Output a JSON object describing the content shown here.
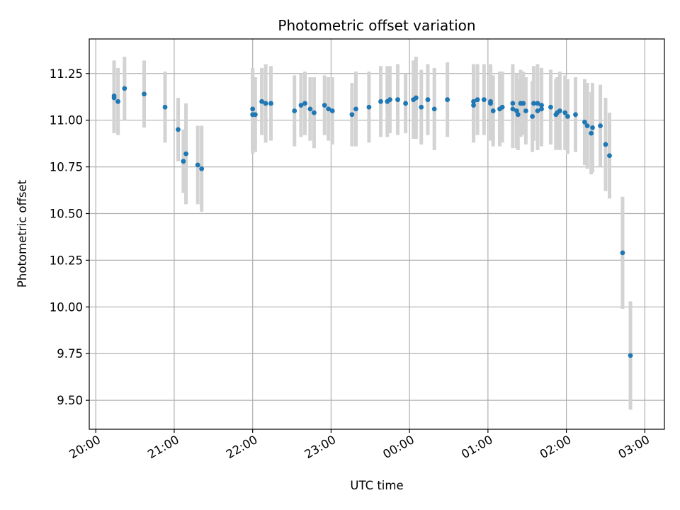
{
  "chart_data": {
    "type": "scatter",
    "title": "Photometric offset variation",
    "xlabel": "UTC time",
    "ylabel": "Photometric offset",
    "x_is_time": true,
    "x_ticks": [
      "20:00",
      "21:00",
      "22:00",
      "23:00",
      "00:00",
      "01:00",
      "02:00",
      "03:00"
    ],
    "y_ticks": [
      "9.50",
      "9.75",
      "10.00",
      "10.25",
      "10.50",
      "10.75",
      "11.00",
      "11.25"
    ],
    "x_range": [
      "19:55",
      "03:15"
    ],
    "ylim": [
      9.345,
      11.435
    ],
    "grid": true,
    "colors": {
      "point": "#1f77b4",
      "errorbar": "#d3d3d3",
      "grid": "#b0b0b0"
    },
    "points": [
      {
        "x": "20:14",
        "y": 11.12,
        "err": 0.19
      },
      {
        "x": "20:14",
        "y": 11.13,
        "err": 0.19
      },
      {
        "x": "20:17",
        "y": 11.1,
        "err": 0.18
      },
      {
        "x": "20:22",
        "y": 11.17,
        "err": 0.17
      },
      {
        "x": "20:37",
        "y": 11.14,
        "err": 0.18
      },
      {
        "x": "20:53",
        "y": 11.07,
        "err": 0.19
      },
      {
        "x": "21:03",
        "y": 10.95,
        "err": 0.17
      },
      {
        "x": "21:07",
        "y": 10.78,
        "err": 0.17
      },
      {
        "x": "21:09",
        "y": 10.82,
        "err": 0.27
      },
      {
        "x": "21:18",
        "y": 10.76,
        "err": 0.21
      },
      {
        "x": "21:21",
        "y": 10.74,
        "err": 0.23
      },
      {
        "x": "22:00",
        "y": 11.03,
        "err": 0.21
      },
      {
        "x": "22:00",
        "y": 11.06,
        "err": 0.22
      },
      {
        "x": "22:02",
        "y": 11.03,
        "err": 0.2
      },
      {
        "x": "22:07",
        "y": 11.1,
        "err": 0.18
      },
      {
        "x": "22:10",
        "y": 11.09,
        "err": 0.21
      },
      {
        "x": "22:14",
        "y": 11.09,
        "err": 0.2
      },
      {
        "x": "22:32",
        "y": 11.05,
        "err": 0.19
      },
      {
        "x": "22:37",
        "y": 11.08,
        "err": 0.17
      },
      {
        "x": "22:40",
        "y": 11.09,
        "err": 0.17
      },
      {
        "x": "22:44",
        "y": 11.06,
        "err": 0.17
      },
      {
        "x": "22:47",
        "y": 11.04,
        "err": 0.19
      },
      {
        "x": "22:55",
        "y": 11.08,
        "err": 0.16
      },
      {
        "x": "22:58",
        "y": 11.06,
        "err": 0.17
      },
      {
        "x": "23:01",
        "y": 11.05,
        "err": 0.18
      },
      {
        "x": "23:16",
        "y": 11.03,
        "err": 0.17
      },
      {
        "x": "23:19",
        "y": 11.06,
        "err": 0.2
      },
      {
        "x": "23:29",
        "y": 11.07,
        "err": 0.19
      },
      {
        "x": "23:38",
        "y": 11.1,
        "err": 0.19
      },
      {
        "x": "23:43",
        "y": 11.1,
        "err": 0.19
      },
      {
        "x": "23:45",
        "y": 11.11,
        "err": 0.18
      },
      {
        "x": "23:51",
        "y": 11.11,
        "err": 0.19
      },
      {
        "x": "23:57",
        "y": 11.09,
        "err": 0.16
      },
      {
        "x": "00:03",
        "y": 11.11,
        "err": 0.21
      },
      {
        "x": "00:05",
        "y": 11.12,
        "err": 0.22
      },
      {
        "x": "00:09",
        "y": 11.07,
        "err": 0.2
      },
      {
        "x": "00:14",
        "y": 11.11,
        "err": 0.19
      },
      {
        "x": "00:19",
        "y": 11.06,
        "err": 0.22
      },
      {
        "x": "00:29",
        "y": 11.11,
        "err": 0.2
      },
      {
        "x": "00:49",
        "y": 11.08,
        "err": 0.2
      },
      {
        "x": "00:49",
        "y": 11.1,
        "err": 0.2
      },
      {
        "x": "00:52",
        "y": 11.11,
        "err": 0.19
      },
      {
        "x": "00:57",
        "y": 11.11,
        "err": 0.19
      },
      {
        "x": "01:02",
        "y": 11.09,
        "err": 0.2
      },
      {
        "x": "01:02",
        "y": 11.1,
        "err": 0.2
      },
      {
        "x": "01:04",
        "y": 11.05,
        "err": 0.19
      },
      {
        "x": "01:09",
        "y": 11.06,
        "err": 0.2
      },
      {
        "x": "01:11",
        "y": 11.07,
        "err": 0.19
      },
      {
        "x": "01:19",
        "y": 11.06,
        "err": 0.21
      },
      {
        "x": "01:19",
        "y": 11.09,
        "err": 0.21
      },
      {
        "x": "01:22",
        "y": 11.05,
        "err": 0.2
      },
      {
        "x": "01:23",
        "y": 11.03,
        "err": 0.19
      },
      {
        "x": "01:25",
        "y": 11.09,
        "err": 0.18
      },
      {
        "x": "01:27",
        "y": 11.09,
        "err": 0.17
      },
      {
        "x": "01:29",
        "y": 11.05,
        "err": 0.18
      },
      {
        "x": "01:34",
        "y": 11.02,
        "err": 0.19
      },
      {
        "x": "01:35",
        "y": 11.09,
        "err": 0.2
      },
      {
        "x": "01:38",
        "y": 11.05,
        "err": 0.21
      },
      {
        "x": "01:38",
        "y": 11.09,
        "err": 0.21
      },
      {
        "x": "01:41",
        "y": 11.06,
        "err": 0.2
      },
      {
        "x": "01:41",
        "y": 11.08,
        "err": 0.2
      },
      {
        "x": "01:48",
        "y": 11.07,
        "err": 0.2
      },
      {
        "x": "01:52",
        "y": 11.03,
        "err": 0.19
      },
      {
        "x": "01:53",
        "y": 11.04,
        "err": 0.19
      },
      {
        "x": "01:55",
        "y": 11.05,
        "err": 0.21
      },
      {
        "x": "01:59",
        "y": 11.04,
        "err": 0.2
      },
      {
        "x": "02:01",
        "y": 11.02,
        "err": 0.2
      },
      {
        "x": "02:07",
        "y": 11.03,
        "err": 0.2
      },
      {
        "x": "02:14",
        "y": 10.99,
        "err": 0.23
      },
      {
        "x": "02:16",
        "y": 10.97,
        "err": 0.23
      },
      {
        "x": "02:19",
        "y": 10.93,
        "err": 0.22
      },
      {
        "x": "02:20",
        "y": 10.96,
        "err": 0.24
      },
      {
        "x": "02:26",
        "y": 10.97,
        "err": 0.22
      },
      {
        "x": "02:30",
        "y": 10.87,
        "err": 0.25
      },
      {
        "x": "02:33",
        "y": 10.81,
        "err": 0.23
      },
      {
        "x": "02:43",
        "y": 10.29,
        "err": 0.3
      },
      {
        "x": "02:49",
        "y": 9.74,
        "err": 0.29
      }
    ]
  }
}
